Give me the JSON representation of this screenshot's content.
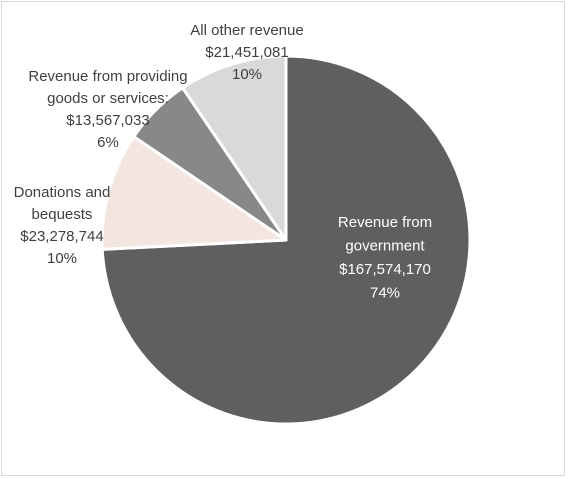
{
  "chart_data": {
    "type": "pie",
    "title": "",
    "legend": "none",
    "slices": [
      {
        "name": "Revenue from government",
        "label_lines": [
          "Revenue from",
          "government"
        ],
        "value": 167574170,
        "value_label": "$167,574,170",
        "percent_label": "74%",
        "color": "#5f5f5f",
        "label_color": "#ffffff"
      },
      {
        "name": "Donations and bequests",
        "label_lines": [
          "Donations and",
          "bequests"
        ],
        "value": 23278744,
        "value_label": "$23,278,744",
        "percent_label": "10%",
        "color": "#f3e6e1",
        "label_color": "#404040"
      },
      {
        "name": "Revenue from providing goods or services",
        "label_lines": [
          "Revenue from providing",
          "goods or services:"
        ],
        "value": 13567033,
        "value_label": "$13,567,033",
        "percent_label": "6%",
        "color": "#888888",
        "label_color": "#404040"
      },
      {
        "name": "All other revenue",
        "label_lines": [
          "All other revenue"
        ],
        "value": 21451081,
        "value_label": "$21,451,081",
        "percent_label": "10%",
        "color": "#d9d9d9",
        "label_color": "#404040"
      }
    ]
  }
}
